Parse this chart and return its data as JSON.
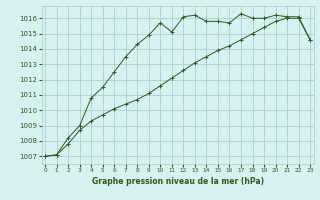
{
  "line1_x": [
    0,
    1,
    2,
    3,
    4,
    5,
    6,
    7,
    8,
    9,
    10,
    11,
    12,
    13,
    14,
    15,
    16,
    17,
    18,
    19,
    20,
    21,
    22,
    23
  ],
  "line1_y": [
    1007.0,
    1007.1,
    1008.2,
    1009.0,
    1010.8,
    1011.5,
    1012.5,
    1013.5,
    1014.3,
    1014.9,
    1015.7,
    1015.1,
    1016.1,
    1016.2,
    1015.8,
    1015.8,
    1015.7,
    1016.3,
    1016.0,
    1016.0,
    1016.2,
    1016.1,
    1016.1,
    1014.6
  ],
  "line2_x": [
    0,
    1,
    2,
    3,
    4,
    5,
    6,
    7,
    8,
    9,
    10,
    11,
    12,
    13,
    14,
    15,
    16,
    17,
    18,
    19,
    20,
    21,
    22,
    23
  ],
  "line2_y": [
    1007.0,
    1007.1,
    1007.8,
    1008.7,
    1009.3,
    1009.7,
    1010.1,
    1010.4,
    1010.7,
    1011.1,
    1011.6,
    1012.1,
    1012.6,
    1013.1,
    1013.5,
    1013.9,
    1014.2,
    1014.6,
    1015.0,
    1015.4,
    1015.8,
    1016.0,
    1016.0,
    1014.6
  ],
  "line_color": "#2d5a1b",
  "bg_color": "#d8f0f0",
  "grid_color": "#a0c8c8",
  "title": "Graphe pression niveau de la mer (hPa)",
  "ylim_min": 1006.5,
  "ylim_max": 1016.8,
  "yticks": [
    1007,
    1008,
    1009,
    1010,
    1011,
    1012,
    1013,
    1014,
    1015,
    1016
  ],
  "xticks": [
    0,
    1,
    2,
    3,
    4,
    5,
    6,
    7,
    8,
    9,
    10,
    11,
    12,
    13,
    14,
    15,
    16,
    17,
    18,
    19,
    20,
    21,
    22,
    23
  ],
  "marker": "+"
}
